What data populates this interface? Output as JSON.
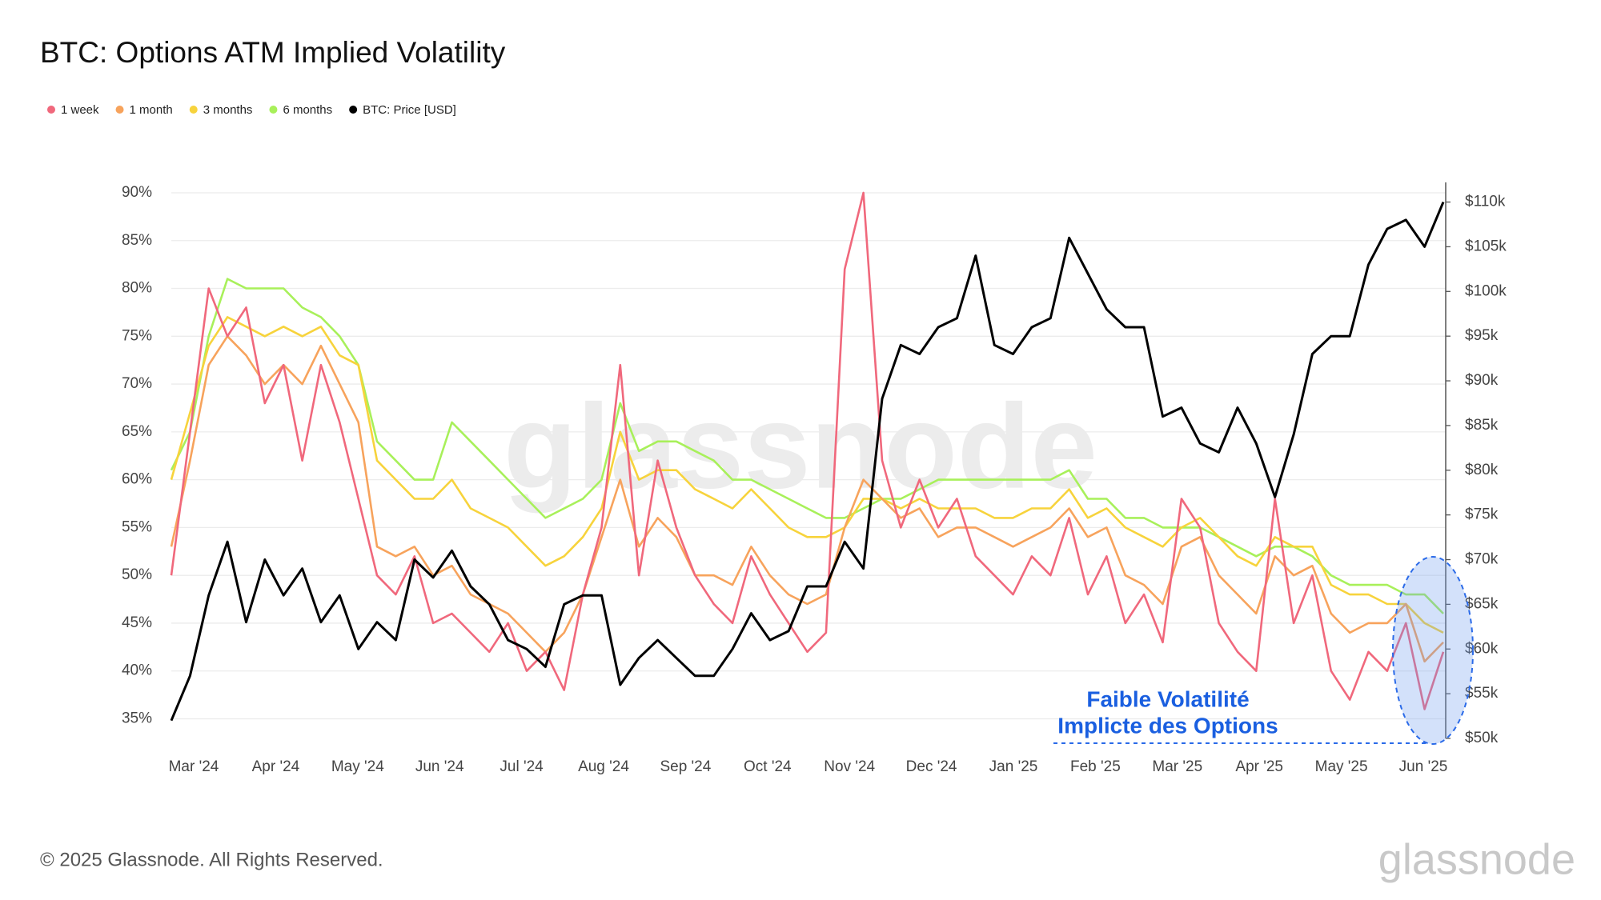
{
  "chart_data": {
    "type": "line",
    "title": "BTC: Options ATM Implied Volatility",
    "xticks": [
      "Mar '24",
      "Apr '24",
      "May '24",
      "Jun '24",
      "Jul '24",
      "Aug '24",
      "Sep '24",
      "Oct '24",
      "Nov '24",
      "Dec '24",
      "Jan '25",
      "Feb '25",
      "Mar '25",
      "Apr '25",
      "May '25",
      "Jun '25"
    ],
    "ylim": [
      32.95,
      90.75
    ],
    "yticks": [
      {
        "value": 35,
        "label": "35%"
      },
      {
        "value": 40,
        "label": "40%"
      },
      {
        "value": 45,
        "label": "45%"
      },
      {
        "value": 50,
        "label": "50%"
      },
      {
        "value": 55,
        "label": "55%"
      },
      {
        "value": 60,
        "label": "60%"
      },
      {
        "value": 65,
        "label": "65%"
      },
      {
        "value": 70,
        "label": "70%"
      },
      {
        "value": 75,
        "label": "75%"
      },
      {
        "value": 80,
        "label": "80%"
      },
      {
        "value": 85,
        "label": "85%"
      },
      {
        "value": 90,
        "label": "90%"
      }
    ],
    "y2lim": [
      50000,
      111840
    ],
    "y2ticks": [
      {
        "value": 50000,
        "label": "$50k"
      },
      {
        "value": 55000,
        "label": "$55k"
      },
      {
        "value": 60000,
        "label": "$60k"
      },
      {
        "value": 65000,
        "label": "$65k"
      },
      {
        "value": 70000,
        "label": "$70k"
      },
      {
        "value": 75000,
        "label": "$75k"
      },
      {
        "value": 80000,
        "label": "$80k"
      },
      {
        "value": 85000,
        "label": "$85k"
      },
      {
        "value": 90000,
        "label": "$90k"
      },
      {
        "value": 95000,
        "label": "$95k"
      },
      {
        "value": 100000,
        "label": "$100k"
      },
      {
        "value": 105000,
        "label": "$105k"
      },
      {
        "value": 110000,
        "label": "$110k"
      }
    ],
    "grid": true,
    "series": [
      {
        "name": "1 week",
        "color": "#f0687c",
        "values": [
          50,
          65,
          80,
          75,
          78,
          68,
          72,
          62,
          72,
          66,
          58,
          50,
          48,
          52,
          45,
          46,
          44,
          42,
          45,
          40,
          42,
          38,
          48,
          55,
          72,
          50,
          62,
          55,
          50,
          47,
          45,
          52,
          48,
          45,
          42,
          44,
          82,
          90,
          62,
          55,
          60,
          55,
          58,
          52,
          50,
          48,
          52,
          50,
          56,
          48,
          52,
          45,
          48,
          43,
          58,
          55,
          45,
          42,
          40,
          58,
          45,
          50,
          40,
          37,
          42,
          40,
          45,
          36,
          42
        ]
      },
      {
        "name": "1 month",
        "color": "#f7a35c",
        "values": [
          53,
          62,
          72,
          75,
          73,
          70,
          72,
          70,
          74,
          70,
          66,
          53,
          52,
          53,
          50,
          51,
          48,
          47,
          46,
          44,
          42,
          44,
          48,
          54,
          60,
          53,
          56,
          54,
          50,
          50,
          49,
          53,
          50,
          48,
          47,
          48,
          55,
          60,
          58,
          56,
          57,
          54,
          55,
          55,
          54,
          53,
          54,
          55,
          57,
          54,
          55,
          50,
          49,
          47,
          53,
          54,
          50,
          48,
          46,
          52,
          50,
          51,
          46,
          44,
          45,
          45,
          47,
          41,
          43
        ]
      },
      {
        "name": "3 months",
        "color": "#f7d33c",
        "values": [
          60,
          67,
          74,
          77,
          76,
          75,
          76,
          75,
          76,
          73,
          72,
          62,
          60,
          58,
          58,
          60,
          57,
          56,
          55,
          53,
          51,
          52,
          54,
          57,
          65,
          60,
          61,
          61,
          59,
          58,
          57,
          59,
          57,
          55,
          54,
          54,
          55,
          58,
          58,
          57,
          58,
          57,
          57,
          57,
          56,
          56,
          57,
          57,
          59,
          56,
          57,
          55,
          54,
          53,
          55,
          56,
          54,
          52,
          51,
          54,
          53,
          53,
          49,
          48,
          48,
          47,
          47,
          45,
          44
        ]
      },
      {
        "name": "6 months",
        "color": "#a8f05a",
        "values": [
          61,
          65,
          75,
          81,
          80,
          80,
          80,
          78,
          77,
          75,
          72,
          64,
          62,
          60,
          60,
          66,
          64,
          62,
          60,
          58,
          56,
          57,
          58,
          60,
          68,
          63,
          64,
          64,
          63,
          62,
          60,
          60,
          59,
          58,
          57,
          56,
          56,
          57,
          58,
          58,
          59,
          60,
          60,
          60,
          60,
          60,
          60,
          60,
          61,
          58,
          58,
          56,
          56,
          55,
          55,
          55,
          54,
          53,
          52,
          53,
          53,
          52,
          50,
          49,
          49,
          49,
          48,
          48,
          46
        ]
      },
      {
        "name": "BTC: Price [USD]",
        "color": "#000000",
        "axis": "y2",
        "values": [
          52000,
          57000,
          66000,
          72000,
          63000,
          70000,
          66000,
          69000,
          63000,
          66000,
          60000,
          63000,
          61000,
          70000,
          68000,
          71000,
          67000,
          65000,
          61000,
          60000,
          58000,
          65000,
          66000,
          66000,
          56000,
          59000,
          61000,
          59000,
          57000,
          57000,
          60000,
          64000,
          61000,
          62000,
          67000,
          67000,
          72000,
          69000,
          88000,
          94000,
          93000,
          96000,
          97000,
          104000,
          94000,
          93000,
          96000,
          97000,
          106000,
          102000,
          98000,
          96000,
          96000,
          86000,
          87000,
          83000,
          82000,
          87000,
          83000,
          77000,
          84000,
          93000,
          95000,
          95000,
          103000,
          107000,
          108000,
          105000,
          110000
        ]
      }
    ],
    "annotations": [
      "Faible Volatilité",
      "Implicte des Options"
    ]
  },
  "watermark": "glassnode",
  "footer": "© 2025 Glassnode. All Rights Reserved.",
  "logo": "glassnode"
}
